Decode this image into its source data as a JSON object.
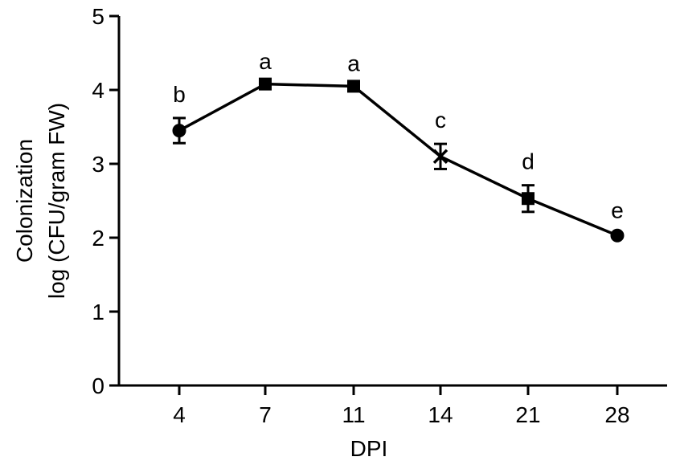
{
  "chart_data": {
    "type": "line",
    "title": "",
    "xlabel": "DPI",
    "ylabel_lines": [
      "Colonization",
      "log (CFU/gram FW)"
    ],
    "categories": [
      "4",
      "7",
      "11",
      "14",
      "21",
      "28"
    ],
    "ylim": [
      0,
      5
    ],
    "yticks": [
      "0",
      "1",
      "2",
      "3",
      "4",
      "5"
    ],
    "grid": false,
    "series": [
      {
        "values": [
          3.45,
          4.08,
          4.05,
          3.1,
          2.53,
          2.03
        ],
        "errors": [
          0.17,
          0.03,
          0.03,
          0.17,
          0.18,
          0.02
        ],
        "markers": [
          "circle",
          "square",
          "square",
          "cross",
          "square",
          "circle"
        ],
        "significance": [
          "b",
          "a",
          "a",
          "c",
          "d",
          "e"
        ]
      }
    ]
  }
}
